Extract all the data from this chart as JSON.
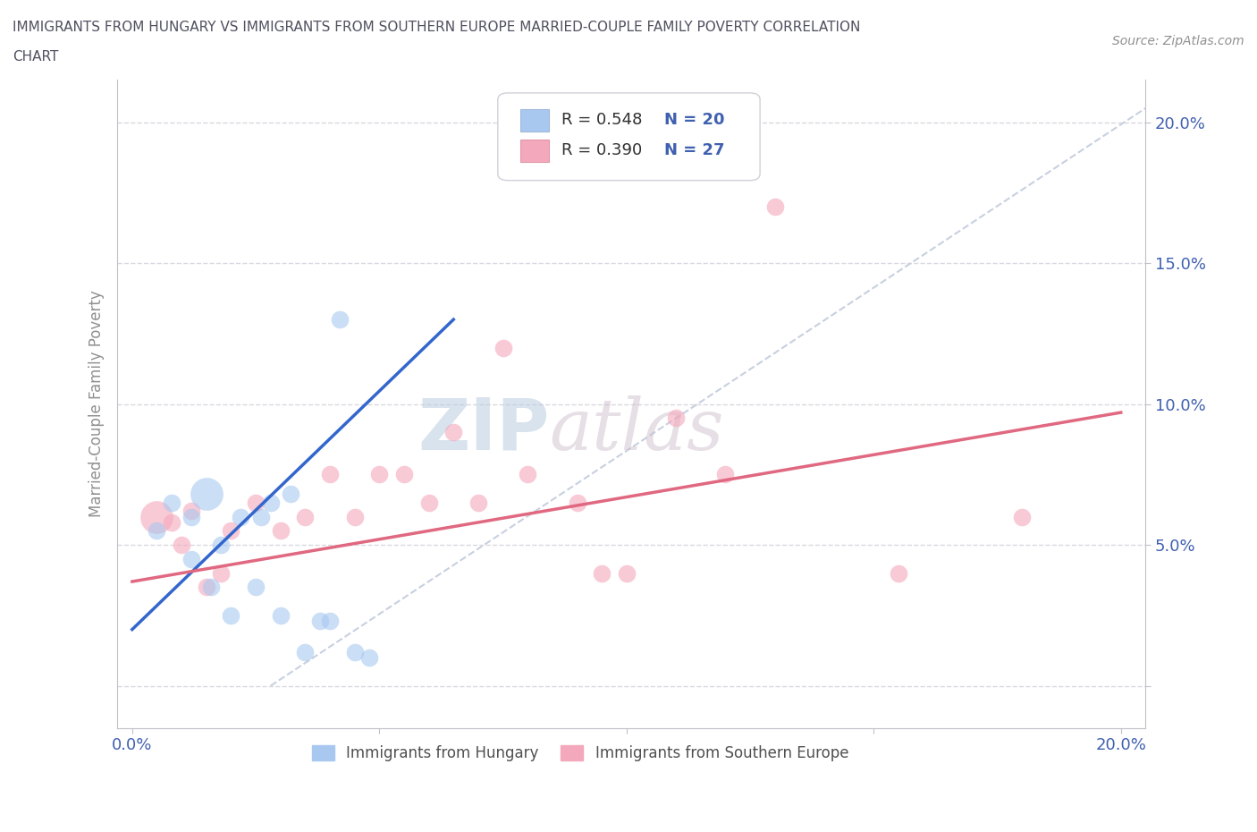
{
  "title_line1": "IMMIGRANTS FROM HUNGARY VS IMMIGRANTS FROM SOUTHERN EUROPE MARRIED-COUPLE FAMILY POVERTY CORRELATION",
  "title_line2": "CHART",
  "source_text": "Source: ZipAtlas.com",
  "ylabel": "Married-Couple Family Poverty",
  "xlabel_hungary": "Immigrants from Hungary",
  "xlabel_southern": "Immigrants from Southern Europe",
  "xlim": [
    -0.003,
    0.205
  ],
  "ylim": [
    -0.015,
    0.215
  ],
  "ytick_vals": [
    0.0,
    0.05,
    0.1,
    0.15,
    0.2
  ],
  "ytick_labels": [
    "",
    "5.0%",
    "10.0%",
    "15.0%",
    "20.0%"
  ],
  "xtick_vals": [
    0.0,
    0.05,
    0.1,
    0.15,
    0.2
  ],
  "xtick_labels": [
    "0.0%",
    "",
    "",
    "",
    "20.0%"
  ],
  "R_hungary": 0.548,
  "N_hungary": 20,
  "R_southern": 0.39,
  "N_southern": 27,
  "color_hungary": "#a8c8f0",
  "color_southern": "#f4a8bc",
  "line_color_hungary": "#3366cc",
  "line_color_southern": "#e06880",
  "diagonal_color": "#c8d0e0",
  "watermark_zip": "ZIP",
  "watermark_atlas": "atlas",
  "hungary_x": [
    0.005,
    0.008,
    0.012,
    0.012,
    0.015,
    0.016,
    0.018,
    0.02,
    0.022,
    0.025,
    0.026,
    0.028,
    0.03,
    0.032,
    0.035,
    0.038,
    0.04,
    0.042,
    0.045,
    0.048
  ],
  "hungary_y": [
    0.055,
    0.065,
    0.06,
    0.045,
    0.068,
    0.035,
    0.05,
    0.025,
    0.06,
    0.035,
    0.06,
    0.065,
    0.025,
    0.068,
    0.012,
    0.023,
    0.023,
    0.13,
    0.012,
    0.01
  ],
  "hungary_big_idx": 4,
  "southern_x": [
    0.005,
    0.008,
    0.01,
    0.012,
    0.015,
    0.018,
    0.02,
    0.025,
    0.03,
    0.035,
    0.04,
    0.045,
    0.05,
    0.055,
    0.06,
    0.065,
    0.07,
    0.075,
    0.08,
    0.09,
    0.095,
    0.1,
    0.11,
    0.12,
    0.13,
    0.155,
    0.18
  ],
  "southern_y": [
    0.06,
    0.058,
    0.05,
    0.062,
    0.035,
    0.04,
    0.055,
    0.065,
    0.055,
    0.06,
    0.075,
    0.06,
    0.075,
    0.075,
    0.065,
    0.09,
    0.065,
    0.12,
    0.075,
    0.065,
    0.04,
    0.04,
    0.095,
    0.075,
    0.17,
    0.04,
    0.06
  ],
  "southern_big_idx": 0,
  "dot_size": 200,
  "big_dot_size": 700,
  "background_color": "#ffffff",
  "grid_color": "#d8d8e0",
  "title_color": "#505060",
  "axis_label_color": "#909090",
  "tick_color": "#4060b0",
  "hungary_line_x0": 0.0,
  "hungary_line_x1": 0.065,
  "hungary_line_y0": 0.02,
  "hungary_line_y1": 0.13,
  "southern_line_x0": 0.0,
  "southern_line_x1": 0.2,
  "southern_line_y0": 0.037,
  "southern_line_y1": 0.097
}
